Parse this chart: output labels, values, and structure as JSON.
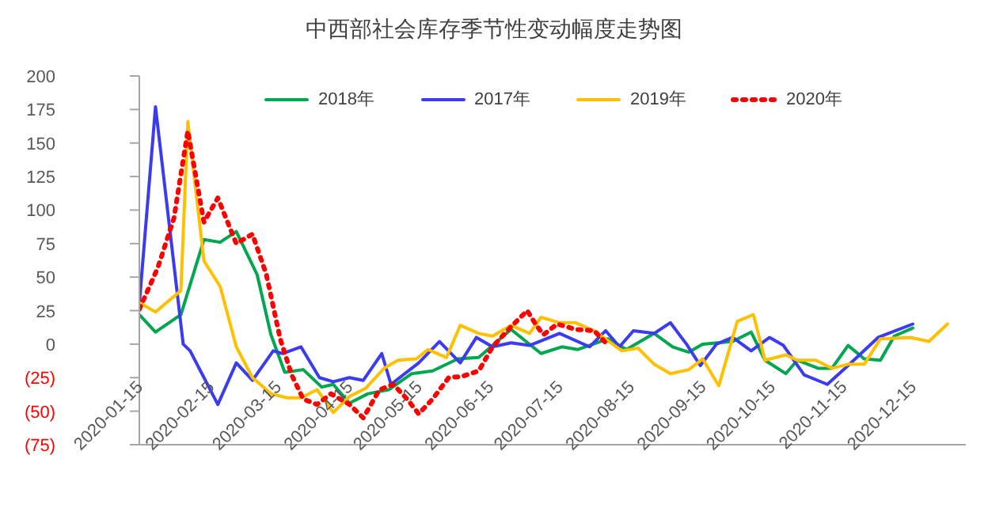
{
  "chart_data": {
    "type": "line",
    "title": "中西部社会库存季节性变动幅度走势图",
    "xlim": [
      "2020-01-15",
      "2021-01-07"
    ],
    "xticks": [
      "2020-01-15",
      "2020-02-15",
      "2020-03-15",
      "2020-04-15",
      "2020-05-15",
      "2020-06-15",
      "2020-07-15",
      "2020-08-15",
      "2020-09-15",
      "2020-10-15",
      "2020-11-15",
      "2020-12-15"
    ],
    "ylim": [
      -75,
      200
    ],
    "yticks": [
      {
        "value": -75,
        "label": "(75)"
      },
      {
        "value": -50,
        "label": "(50)"
      },
      {
        "value": -25,
        "label": "(25)"
      },
      0,
      25,
      50,
      75,
      100,
      125,
      150,
      175,
      200
    ],
    "legend": "top",
    "grid": false,
    "series": [
      {
        "name": "2018年",
        "color": "#00a650",
        "x": [
          "2020-01-15",
          "2020-01-22",
          "2020-02-02",
          "2020-02-12",
          "2020-02-19",
          "2020-02-26",
          "2020-03-06",
          "2020-03-12",
          "2020-03-18",
          "2020-03-26",
          "2020-04-03",
          "2020-04-08",
          "2020-04-15",
          "2020-04-23",
          "2020-05-02",
          "2020-05-12",
          "2020-05-21",
          "2020-06-01",
          "2020-06-10",
          "2020-06-18",
          "2020-06-24",
          "2020-07-07",
          "2020-07-16",
          "2020-07-23",
          "2020-08-05",
          "2020-08-13",
          "2020-08-25",
          "2020-09-02",
          "2020-09-09",
          "2020-09-15",
          "2020-09-28",
          "2020-10-06",
          "2020-10-12",
          "2020-10-21",
          "2020-10-26",
          "2020-11-04",
          "2020-11-10",
          "2020-11-17",
          "2020-11-24",
          "2020-12-01",
          "2020-12-07",
          "2020-12-15"
        ],
        "values": [
          22,
          9,
          22,
          78,
          76,
          84,
          52,
          7,
          -21,
          -19,
          -32,
          -30,
          -44,
          -37,
          -34,
          -22,
          -20,
          -11,
          -10,
          2,
          11,
          -7,
          -2,
          -4,
          4,
          -4,
          8,
          -2,
          -6,
          0,
          2,
          9,
          -12,
          -22,
          -12,
          -18,
          -18,
          -1,
          -11,
          -12,
          6,
          12
        ]
      },
      {
        "name": "2017年",
        "color": "#3b3bf0",
        "x": [
          "2020-01-15",
          "2020-01-22",
          "2020-02-03",
          "2020-02-06",
          "2020-02-18",
          "2020-02-26",
          "2020-03-04",
          "2020-03-13",
          "2020-03-17",
          "2020-03-25",
          "2020-04-02",
          "2020-04-08",
          "2020-04-15",
          "2020-04-21",
          "2020-04-29",
          "2020-05-03",
          "2020-05-15",
          "2020-05-24",
          "2020-06-02",
          "2020-06-09",
          "2020-06-16",
          "2020-06-24",
          "2020-07-02",
          "2020-07-15",
          "2020-07-28",
          "2020-08-04",
          "2020-08-10",
          "2020-08-16",
          "2020-08-25",
          "2020-09-01",
          "2020-09-08",
          "2020-09-14",
          "2020-09-21",
          "2020-09-28",
          "2020-10-06",
          "2020-10-14",
          "2020-10-20",
          "2020-10-29",
          "2020-11-08",
          "2020-11-17",
          "2020-11-30",
          "2020-12-15"
        ],
        "values": [
          30,
          177,
          0,
          -5,
          -45,
          -14,
          -27,
          -5,
          -7,
          -2,
          -25,
          -28,
          -25,
          -27,
          -7,
          -30,
          -14,
          2,
          -14,
          5,
          -2,
          1,
          -1,
          8,
          -2,
          10,
          -2,
          10,
          8,
          16,
          0,
          -16,
          0,
          5,
          -5,
          5,
          -1,
          -23,
          -30,
          -16,
          5,
          15
        ]
      },
      {
        "name": "2019年",
        "color": "#ffc000",
        "x": [
          "2020-01-15",
          "2020-01-22",
          "2020-02-02",
          "2020-02-05",
          "2020-02-12",
          "2020-02-19",
          "2020-02-26",
          "2020-03-04",
          "2020-03-12",
          "2020-03-19",
          "2020-03-25",
          "2020-04-01",
          "2020-04-08",
          "2020-04-15",
          "2020-04-22",
          "2020-04-30",
          "2020-05-06",
          "2020-05-14",
          "2020-05-19",
          "2020-05-27",
          "2020-06-02",
          "2020-06-10",
          "2020-06-16",
          "2020-06-24",
          "2020-07-02",
          "2020-07-07",
          "2020-07-15",
          "2020-07-22",
          "2020-07-30",
          "2020-08-11",
          "2020-08-18",
          "2020-08-25",
          "2020-09-01",
          "2020-09-09",
          "2020-09-15",
          "2020-09-22",
          "2020-09-30",
          "2020-10-07",
          "2020-10-12",
          "2020-10-21",
          "2020-10-26",
          "2020-11-03",
          "2020-11-10",
          "2020-11-17",
          "2020-11-24",
          "2020-12-01",
          "2020-12-14",
          "2020-12-22",
          "2020-12-30"
        ],
        "values": [
          31,
          24,
          40,
          166,
          62,
          43,
          -2,
          -25,
          -37,
          -40,
          -40,
          -34,
          -51,
          -39,
          -33,
          -18,
          -12,
          -11,
          -4,
          -10,
          14,
          8,
          6,
          14,
          8,
          20,
          16,
          16,
          10,
          -5,
          -3,
          -15,
          -22,
          -19,
          -11,
          -31,
          17,
          22,
          -12,
          -8,
          -12,
          -12,
          -18,
          -15,
          -15,
          4,
          5,
          2,
          15
        ]
      },
      {
        "name": "2020年",
        "color": "#ff0000",
        "line_style": "dotted",
        "x": [
          "2020-01-15",
          "2020-01-23",
          "2020-01-30",
          "2020-02-05",
          "2020-02-12",
          "2020-02-18",
          "2020-02-26",
          "2020-03-04",
          "2020-03-10",
          "2020-03-16",
          "2020-03-21",
          "2020-03-26",
          "2020-04-01",
          "2020-04-07",
          "2020-04-15",
          "2020-04-21",
          "2020-04-28",
          "2020-05-04",
          "2020-05-10",
          "2020-05-15",
          "2020-05-21",
          "2020-05-28",
          "2020-06-03",
          "2020-06-10",
          "2020-06-16",
          "2020-06-24",
          "2020-07-01",
          "2020-07-05",
          "2020-07-08",
          "2020-07-14",
          "2020-07-22",
          "2020-07-30",
          "2020-08-04"
        ],
        "values": [
          26,
          57,
          94,
          159,
          91,
          109,
          75,
          82,
          52,
          4,
          -23,
          -41,
          -45,
          -37,
          -45,
          -55,
          -34,
          -30,
          -41,
          -52,
          -41,
          -25,
          -24,
          -20,
          -2,
          13,
          25,
          14,
          7,
          15,
          11,
          10,
          1
        ]
      }
    ]
  }
}
